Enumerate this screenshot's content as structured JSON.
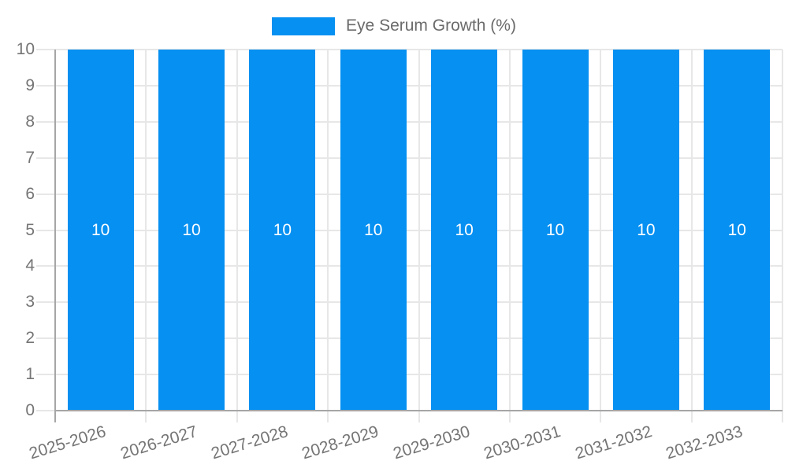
{
  "legend": {
    "label": "Eye Serum Growth (%)"
  },
  "colors": {
    "bar": "#0590F2",
    "grid": "#E7E7E7",
    "axis": "#A6A6A6",
    "tick_label": "#757575",
    "legend_text": "#6B6B6B",
    "bar_label": "#FFFFFF",
    "background": "#FFFFFF"
  },
  "chart_data": {
    "type": "bar",
    "title": "",
    "xlabel": "",
    "ylabel": "",
    "categories": [
      "2025-2026",
      "2026-2027",
      "2027-2028",
      "2028-2029",
      "2029-2030",
      "2030-2031",
      "2031-2032",
      "2032-2033"
    ],
    "series": [
      {
        "name": "Eye Serum Growth (%)",
        "values": [
          10,
          10,
          10,
          10,
          10,
          10,
          10,
          10
        ]
      }
    ],
    "bar_value_labels": [
      "10",
      "10",
      "10",
      "10",
      "10",
      "10",
      "10",
      "10"
    ],
    "ylim": [
      0,
      10
    ],
    "yticks": [
      0,
      1,
      2,
      3,
      4,
      5,
      6,
      7,
      8,
      9,
      10
    ],
    "grid": true,
    "legend_position": "top"
  }
}
